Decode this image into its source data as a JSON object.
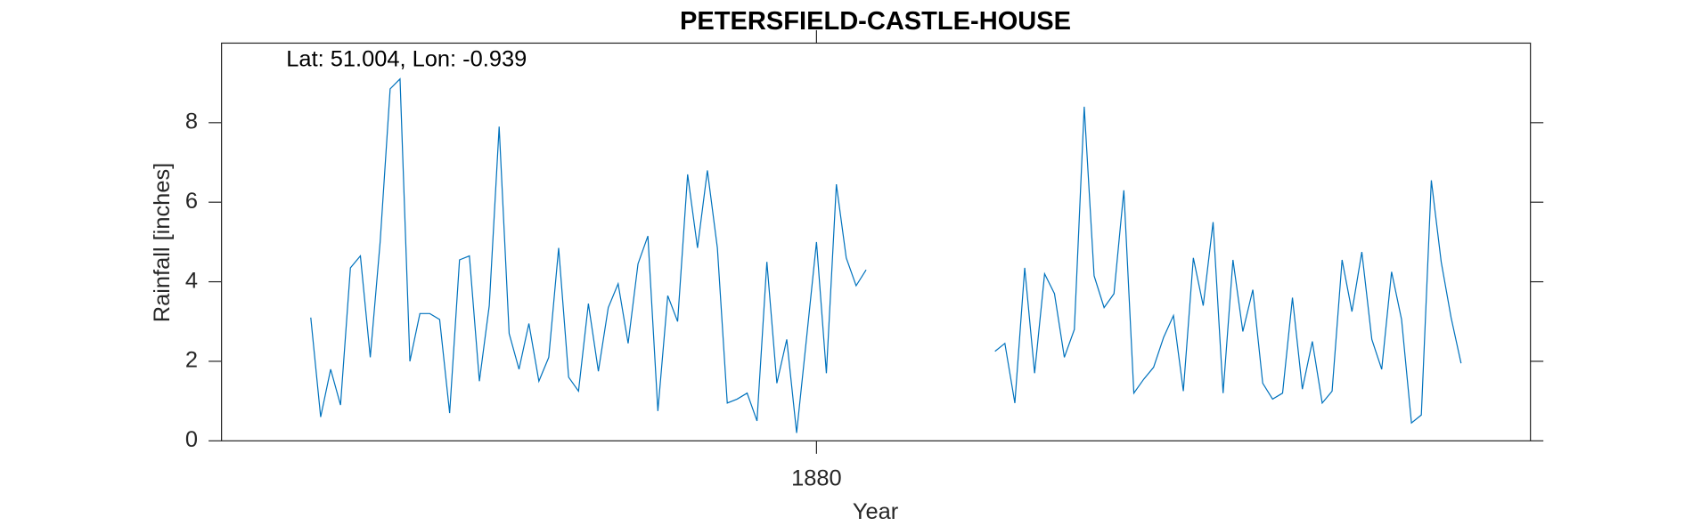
{
  "chart_data": {
    "type": "line",
    "title": "PETERSFIELD-CASTLE-HOUSE",
    "annotation": "Lat: 51.004, Lon: -0.939",
    "xlabel": "Year",
    "ylabel": "Rainfall [inches]",
    "xlim": [
      1875,
      1886
    ],
    "xticks": [
      1880
    ],
    "ylim": [
      0,
      10
    ],
    "yticks": [
      0,
      2,
      4,
      6,
      8
    ],
    "grid": false,
    "x": [
      1875.75,
      1875.833,
      1875.917,
      1876,
      1876.083,
      1876.167,
      1876.25,
      1876.333,
      1876.417,
      1876.5,
      1876.583,
      1876.667,
      1876.75,
      1876.833,
      1876.917,
      1877,
      1877.083,
      1877.167,
      1877.25,
      1877.333,
      1877.417,
      1877.5,
      1877.583,
      1877.667,
      1877.75,
      1877.833,
      1877.917,
      1878,
      1878.083,
      1878.167,
      1878.25,
      1878.333,
      1878.417,
      1878.5,
      1878.583,
      1878.667,
      1878.75,
      1878.833,
      1878.917,
      1879,
      1879.083,
      1879.167,
      1879.25,
      1879.333,
      1879.417,
      1879.5,
      1879.583,
      1879.667,
      1879.75,
      1879.833,
      1879.917,
      1880,
      1880.083,
      1880.167,
      1880.25,
      1880.333,
      1880.417,
      1880.5,
      1880.583,
      1880.667,
      1880.75,
      1880.833,
      1880.917,
      1881,
      1881.083,
      1881.167,
      1881.25,
      1881.333,
      1881.417,
      1881.5,
      1881.583,
      1881.667,
      1881.75,
      1881.833,
      1881.917,
      1882,
      1882.083,
      1882.167,
      1882.25,
      1882.333,
      1882.417,
      1882.5,
      1882.583,
      1882.667,
      1882.75,
      1882.833,
      1882.917,
      1883,
      1883.083,
      1883.167,
      1883.25,
      1883.333,
      1883.417,
      1883.5,
      1883.583,
      1883.667,
      1883.75,
      1883.833,
      1883.917,
      1884,
      1884.083,
      1884.167,
      1884.25,
      1884.333,
      1884.417,
      1884.5,
      1884.583,
      1884.667,
      1884.75,
      1884.833,
      1884.917,
      1885,
      1885.083,
      1885.167,
      1885.25,
      1885.333,
      1885.417
    ],
    "series": [
      {
        "name": "Rainfall",
        "color": "#0072bd",
        "values": [
          3.1,
          0.6,
          1.8,
          0.9,
          4.35,
          4.65,
          2.1,
          5.0,
          8.85,
          9.1,
          2.0,
          3.2,
          3.2,
          3.05,
          0.7,
          4.55,
          4.65,
          1.5,
          3.4,
          7.9,
          2.7,
          1.8,
          2.95,
          1.5,
          2.1,
          4.85,
          1.6,
          1.25,
          3.45,
          1.75,
          3.35,
          3.95,
          2.45,
          4.45,
          5.15,
          0.75,
          3.65,
          3.0,
          6.7,
          4.85,
          6.8,
          4.85,
          0.95,
          1.05,
          1.2,
          0.5,
          4.5,
          1.45,
          2.55,
          0.2,
          2.6,
          5.0,
          1.7,
          6.45,
          4.6,
          3.9,
          4.3,
          null,
          null,
          null,
          null,
          null,
          null,
          null,
          null,
          null,
          null,
          null,
          null,
          2.25,
          2.45,
          0.95,
          4.35,
          1.7,
          4.2,
          3.7,
          2.1,
          2.8,
          8.4,
          4.15,
          3.35,
          3.7,
          6.3,
          1.2,
          1.55,
          1.85,
          2.6,
          3.15,
          1.25,
          4.6,
          3.4,
          5.5,
          1.2,
          4.55,
          2.75,
          3.8,
          1.45,
          1.05,
          1.2,
          3.6,
          1.3,
          2.5,
          0.95,
          1.25,
          4.55,
          3.25,
          4.75,
          2.55,
          1.8,
          4.25,
          3.05,
          0.45,
          0.65,
          6.55,
          4.5,
          3.1,
          1.95
        ]
      }
    ]
  }
}
